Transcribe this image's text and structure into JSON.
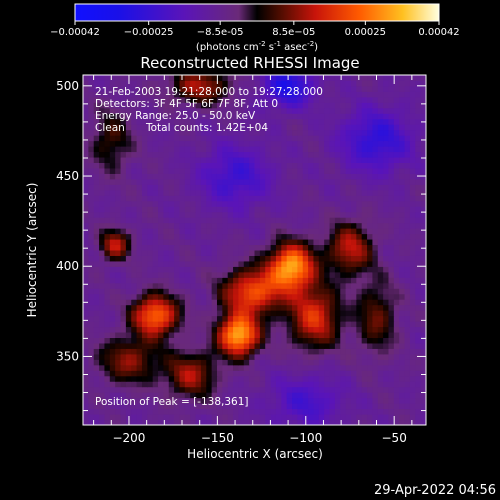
{
  "chart_data": {
    "type": "heatmap",
    "title": "Reconstructed RHESSI Image",
    "xlabel": "Heliocentric X (arcsec)",
    "ylabel": "Heliocentric Y (arcsec)",
    "xlim": [
      -226,
      -32
    ],
    "ylim": [
      312,
      506
    ],
    "x_ticks": [
      -200,
      -150,
      -100,
      -50
    ],
    "y_ticks": [
      350,
      400,
      450,
      500
    ],
    "colorbar": {
      "range": [
        -0.00042,
        0.00042
      ],
      "tick_values": [
        -0.00042,
        -0.00025,
        -8.5e-05,
        8.5e-05,
        0.00025,
        0.00042
      ],
      "tick_labels": [
        "-0.00042",
        "-0.00025",
        "-8.5e-05",
        "8.5e-05",
        "0.00025",
        "0.00042"
      ],
      "unit_label_parts": [
        "(photons cm",
        "-2",
        " s",
        "-1",
        " asec",
        "-2",
        ")"
      ]
    },
    "annotations": {
      "time_range": "21-Feb-2003 19:21:28.000 to 19:27:28.000",
      "detectors": "Detectors: 3F 4F 5F 6F 7F 8F, Att 0",
      "energy_range": "Energy Range: 25.0 - 50.0 keV",
      "clean_label": "Clean",
      "total_counts": "Total counts: 1.42E+04",
      "peak_position": "Position of Peak = [-138,361]"
    },
    "peak": {
      "x": -138,
      "y": 361
    },
    "sources": [
      {
        "x": -138,
        "y": 362,
        "amp": 0.00042,
        "sx": 8,
        "sy": 8
      },
      {
        "x": -108,
        "y": 400,
        "amp": 0.0004,
        "sx": 9,
        "sy": 9
      },
      {
        "x": -185,
        "y": 373,
        "amp": 0.00034,
        "sx": 9,
        "sy": 8
      },
      {
        "x": -130,
        "y": 386,
        "amp": 0.0003,
        "sx": 12,
        "sy": 9
      },
      {
        "x": -95,
        "y": 372,
        "amp": 0.00026,
        "sx": 10,
        "sy": 12
      },
      {
        "x": -208,
        "y": 412,
        "amp": 0.00022,
        "sx": 6,
        "sy": 6
      },
      {
        "x": -75,
        "y": 410,
        "amp": 0.00022,
        "sx": 9,
        "sy": 10
      },
      {
        "x": -200,
        "y": 348,
        "amp": 0.00018,
        "sx": 12,
        "sy": 9
      },
      {
        "x": -165,
        "y": 340,
        "amp": 0.0002,
        "sx": 10,
        "sy": 9
      },
      {
        "x": -60,
        "y": 372,
        "amp": 0.00015,
        "sx": 8,
        "sy": 14
      },
      {
        "x": -160,
        "y": 500,
        "amp": 0.0002,
        "sx": 12,
        "sy": 7
      },
      {
        "x": -210,
        "y": 470,
        "amp": 0.00013,
        "sx": 8,
        "sy": 12
      },
      {
        "x": -140,
        "y": 450,
        "amp": -0.00015,
        "sx": 14,
        "sy": 12
      },
      {
        "x": -60,
        "y": 470,
        "amp": -0.00018,
        "sx": 14,
        "sy": 12
      },
      {
        "x": -110,
        "y": 500,
        "amp": -0.00022,
        "sx": 10,
        "sy": 8
      },
      {
        "x": -100,
        "y": 325,
        "amp": -0.00013,
        "sx": 14,
        "sy": 10
      }
    ]
  },
  "footer": {
    "date": "29-Apr-2022 04:56"
  }
}
